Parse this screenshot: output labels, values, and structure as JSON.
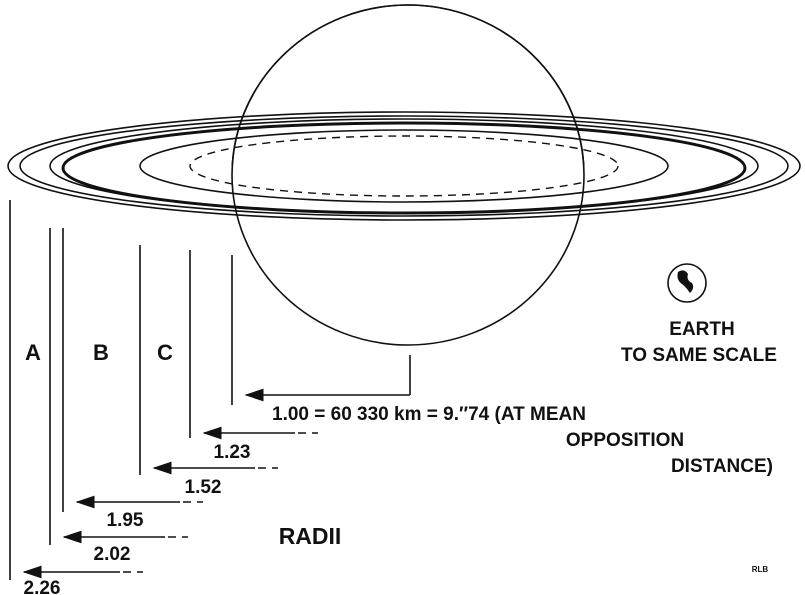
{
  "rings": [
    "A",
    "B",
    "C"
  ],
  "radii": [
    {
      "label": "1.00 = 60 330 km = 9.″74 (AT MEAN"
    },
    {
      "label": "1.23"
    },
    {
      "label": "1.52"
    },
    {
      "label": "1.95"
    },
    {
      "label": "2.02"
    },
    {
      "label": "2.26"
    }
  ],
  "note": [
    "OPPOSITION",
    "DISTANCE)"
  ],
  "radii_title": "RADII",
  "earth": [
    "EARTH",
    "TO SAME SCALE"
  ],
  "signature": "RLB"
}
